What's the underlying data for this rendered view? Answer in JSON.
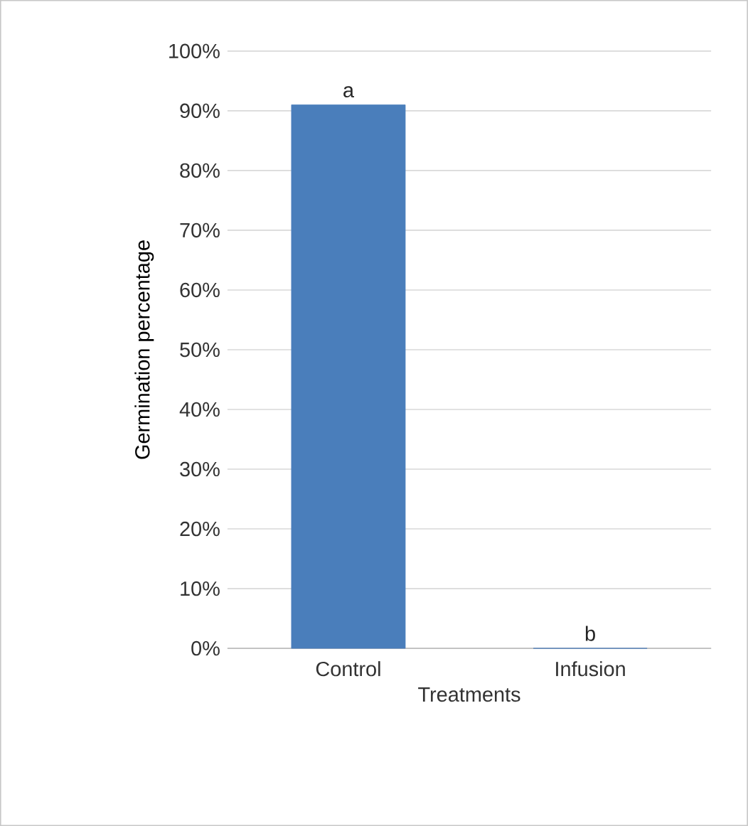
{
  "chart_data": {
    "type": "bar",
    "xlabel": "Treatments",
    "ylabel": "Germination percentage",
    "categories": [
      "Control",
      "Infusion"
    ],
    "values": [
      91,
      0
    ],
    "color": "#4a7ebb",
    "ylim": [
      0,
      100
    ],
    "yticks": [
      {
        "value": 0,
        "label": "0%"
      },
      {
        "value": 10,
        "label": "10%"
      },
      {
        "value": 20,
        "label": "20%"
      },
      {
        "value": 30,
        "label": "30%"
      },
      {
        "value": 40,
        "label": "40%"
      },
      {
        "value": 50,
        "label": "50%"
      },
      {
        "value": 60,
        "label": "60%"
      },
      {
        "value": 70,
        "label": "70%"
      },
      {
        "value": 80,
        "label": "80%"
      },
      {
        "value": 90,
        "label": "90%"
      },
      {
        "value": 100,
        "label": "100%"
      }
    ],
    "grid": "y",
    "annotations": [
      {
        "text": "a",
        "x": "Control",
        "y": 91
      },
      {
        "text": "b",
        "x": "Infusion",
        "y": 0
      }
    ]
  }
}
